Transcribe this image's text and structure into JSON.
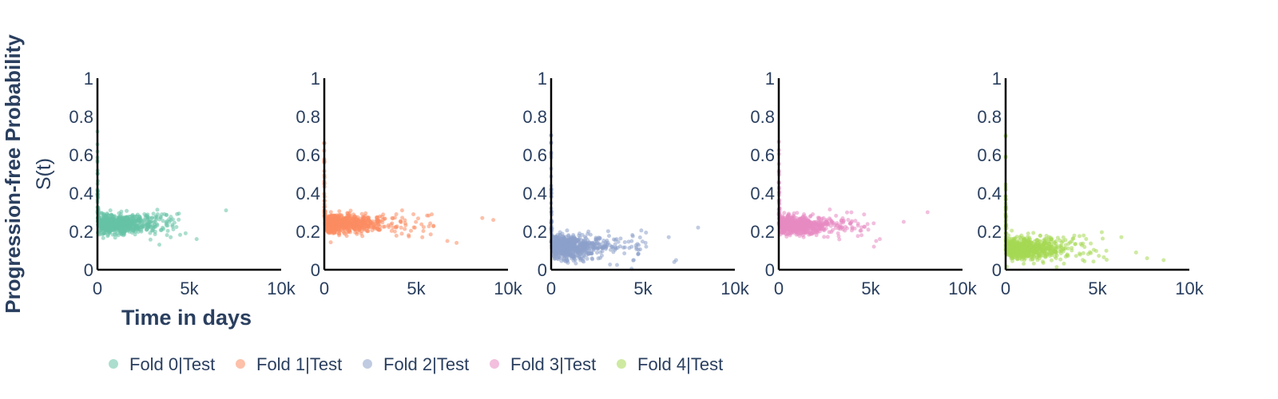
{
  "figure": {
    "ylabel_line1": "Progression-free Probability",
    "ylabel_line2": "S(t)",
    "xlabel": "Time in days"
  },
  "chart_data": [
    {
      "type": "scatter",
      "name": "Fold 0|Test",
      "color": "#66c2a5",
      "xlim": [
        0,
        10000
      ],
      "ylim": [
        0,
        1
      ],
      "xticks": [
        "0",
        "5k",
        "10k"
      ],
      "yticks": [
        "0",
        "0.2",
        "0.4",
        "0.6",
        "0.8",
        "1"
      ],
      "x_range": [
        0,
        7000
      ],
      "mean_y": 0.24,
      "spread": 0.025,
      "max_initial_y": 0.73,
      "outliers": [
        [
          7000,
          0.31
        ],
        [
          5400,
          0.16
        ],
        [
          4800,
          0.19
        ]
      ]
    },
    {
      "type": "scatter",
      "name": "Fold 1|Test",
      "color": "#fc8d62",
      "xlim": [
        0,
        10000
      ],
      "ylim": [
        0,
        1
      ],
      "xticks": [
        "0",
        "5k",
        "10k"
      ],
      "yticks": [
        "0",
        "0.2",
        "0.4",
        "0.6",
        "0.8",
        "1"
      ],
      "x_range": [
        0,
        9200
      ],
      "mean_y": 0.24,
      "spread": 0.022,
      "max_initial_y": 0.73,
      "outliers": [
        [
          9200,
          0.26
        ],
        [
          8600,
          0.27
        ],
        [
          7200,
          0.14
        ],
        [
          6700,
          0.15
        ]
      ]
    },
    {
      "type": "scatter",
      "name": "Fold 2|Test",
      "color": "#8da0cb",
      "xlim": [
        0,
        10000
      ],
      "ylim": [
        0,
        1
      ],
      "xticks": [
        "0",
        "5k",
        "10k"
      ],
      "yticks": [
        "0",
        "0.2",
        "0.4",
        "0.6",
        "0.8",
        "1"
      ],
      "x_range": [
        0,
        8000
      ],
      "mean_y": 0.12,
      "spread": 0.03,
      "max_initial_y": 0.73,
      "outliers": [
        [
          8000,
          0.22
        ],
        [
          6800,
          0.05
        ],
        [
          6700,
          0.04
        ],
        [
          6400,
          0.17
        ]
      ]
    },
    {
      "type": "scatter",
      "name": "Fold 3|Test",
      "color": "#e78ac3",
      "xlim": [
        0,
        10000
      ],
      "ylim": [
        0,
        1
      ],
      "xticks": [
        "0",
        "5k",
        "10k"
      ],
      "yticks": [
        "0",
        "0.2",
        "0.4",
        "0.6",
        "0.8",
        "1"
      ],
      "x_range": [
        0,
        8100
      ],
      "mean_y": 0.23,
      "spread": 0.022,
      "max_initial_y": 0.73,
      "outliers": [
        [
          8100,
          0.3
        ],
        [
          6800,
          0.25
        ],
        [
          5500,
          0.16
        ],
        [
          5300,
          0.15
        ]
      ]
    },
    {
      "type": "scatter",
      "name": "Fold 4|Test",
      "color": "#a6d854",
      "xlim": [
        0,
        10000
      ],
      "ylim": [
        0,
        1
      ],
      "xticks": [
        "0",
        "5k",
        "10k"
      ],
      "yticks": [
        "0",
        "0.2",
        "0.4",
        "0.6",
        "0.8",
        "1"
      ],
      "x_range": [
        0,
        8600
      ],
      "mean_y": 0.11,
      "spread": 0.028,
      "max_initial_y": 0.73,
      "outliers": [
        [
          8600,
          0.05
        ],
        [
          7700,
          0.06
        ],
        [
          7100,
          0.09
        ],
        [
          6300,
          0.17
        ]
      ]
    }
  ]
}
